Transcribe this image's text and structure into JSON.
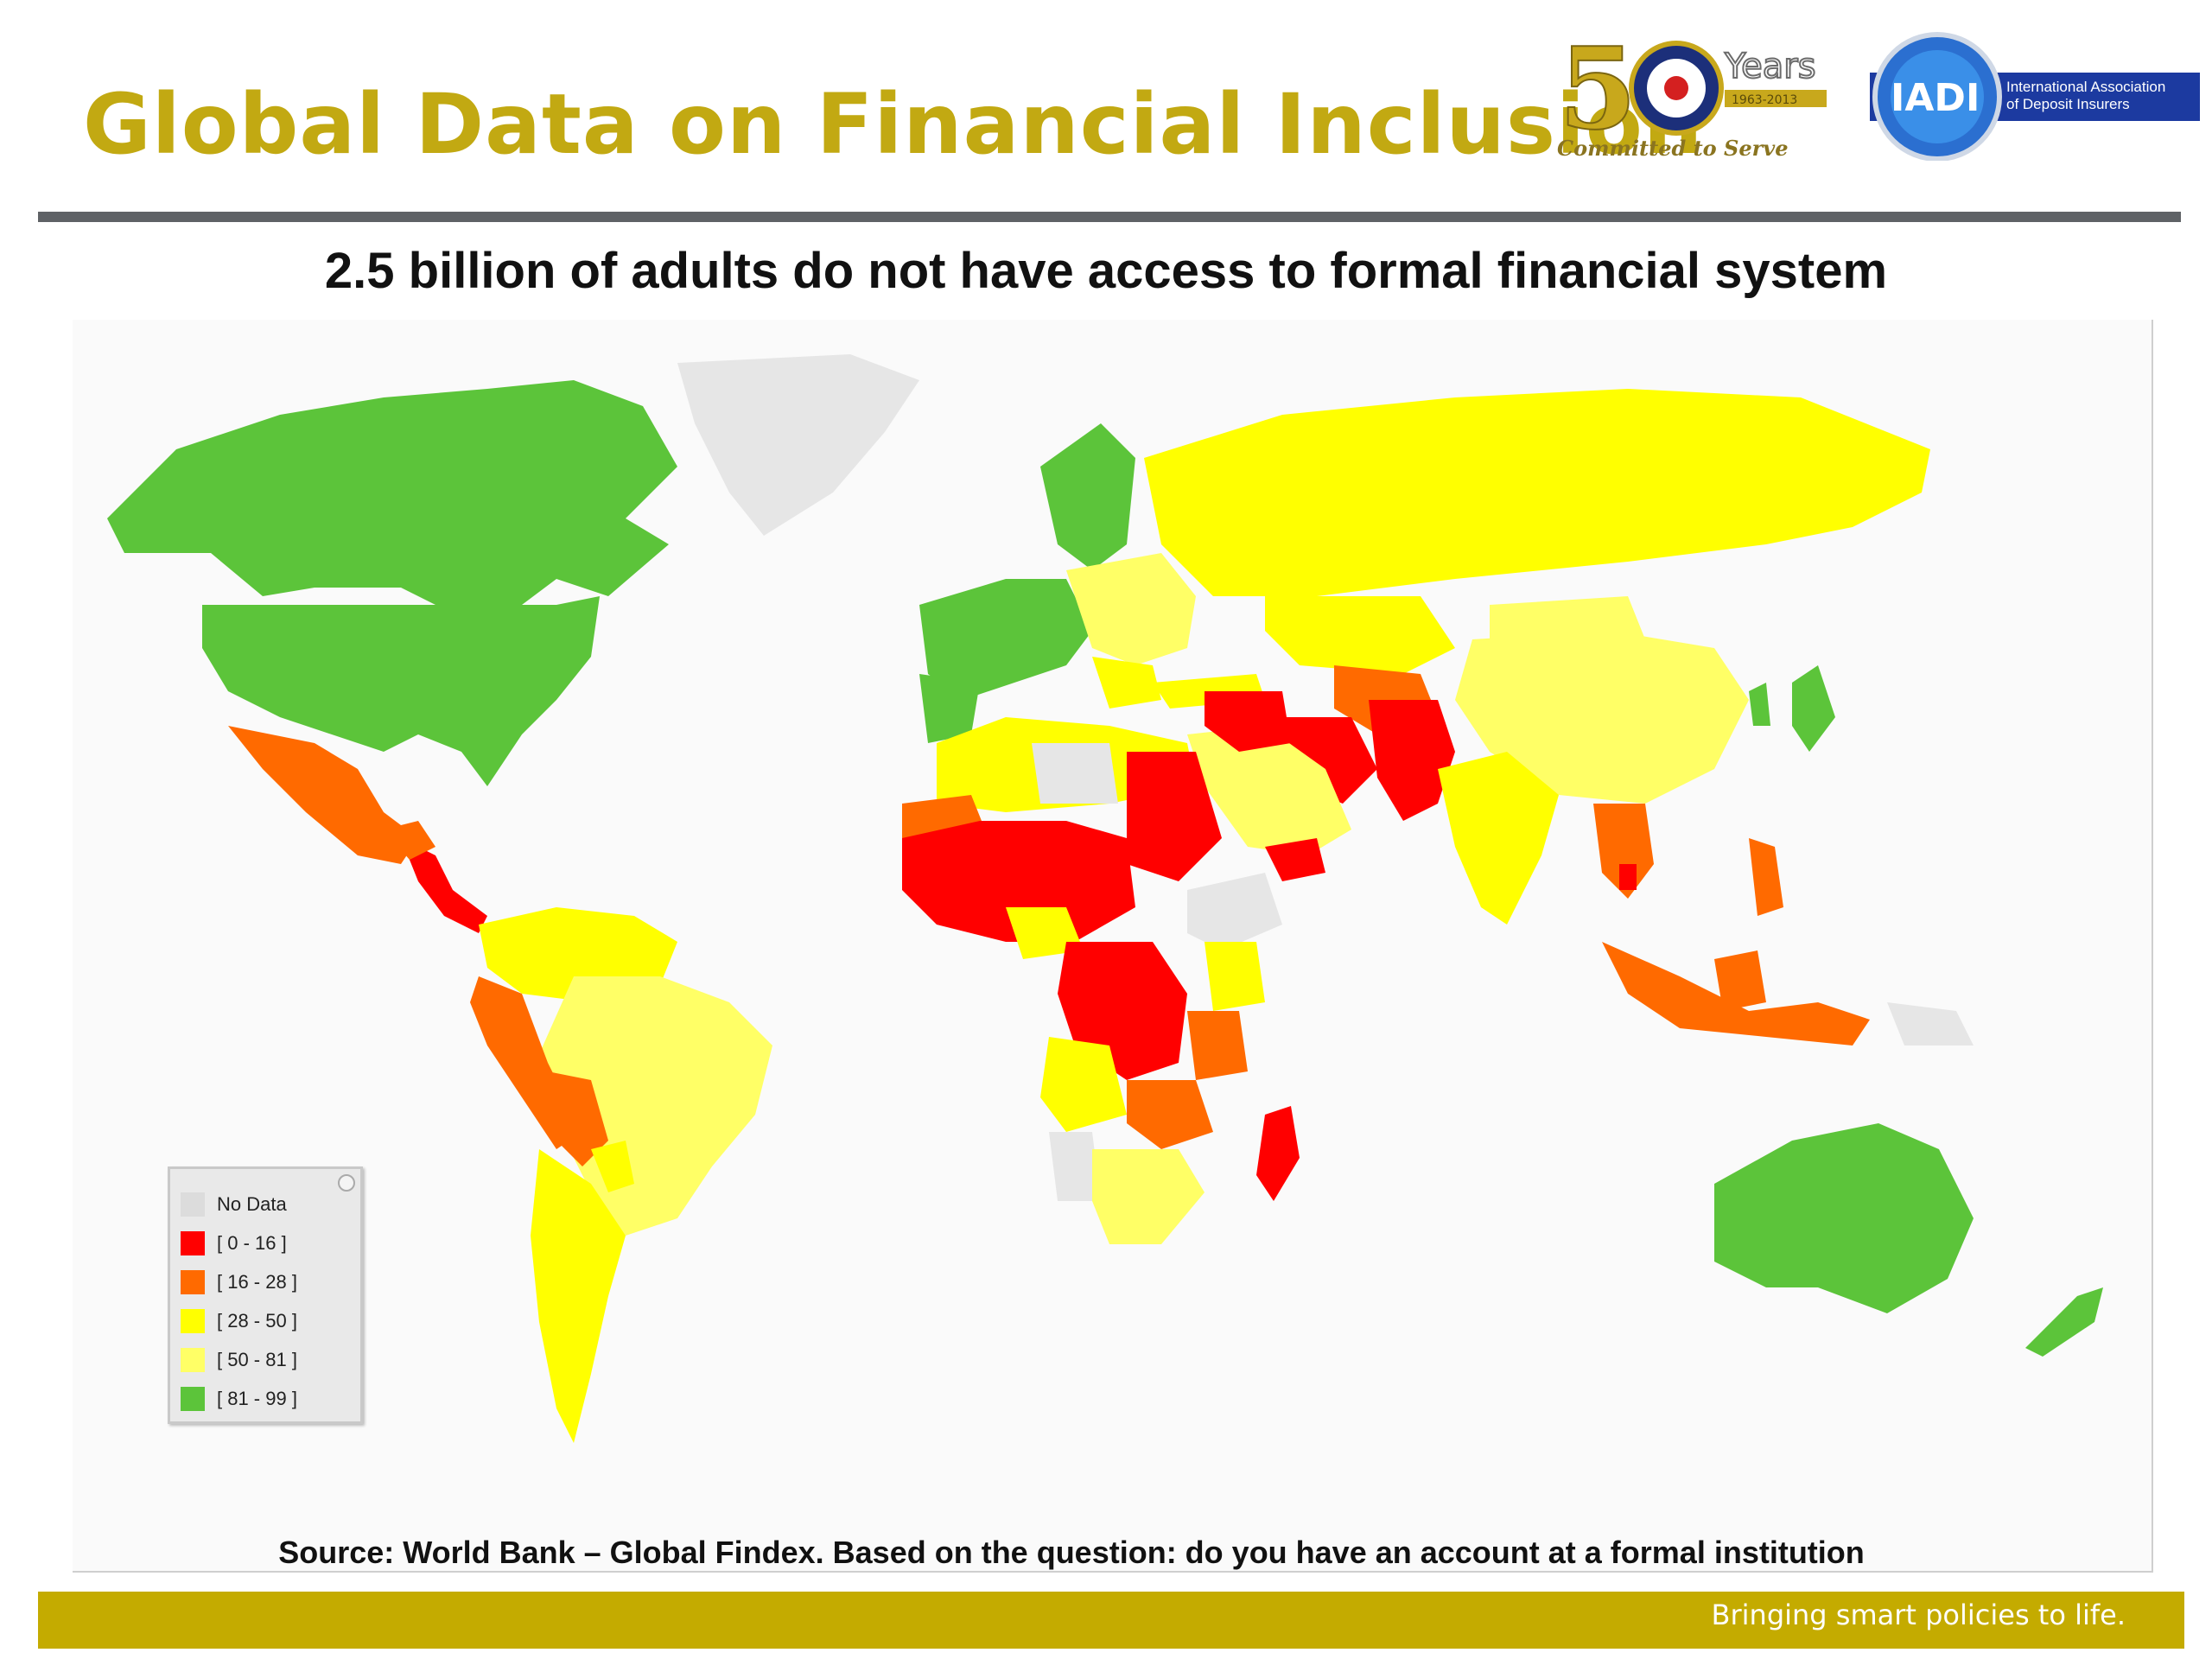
{
  "slide": {
    "title": "Global Data on Financial Inclusion",
    "subtitle": "2.5 billion of adults do not have access to formal financial system",
    "source": "Source: World Bank – Global Findex. Based on the question: do you have an account at a formal institution",
    "tagline": "Bringing smart policies to life."
  },
  "logos": {
    "anniversary": {
      "number": "5",
      "years": "Years",
      "range": "1963-2013",
      "motto": "Committed to Serve"
    },
    "iadi": {
      "abbr": "IADI",
      "name_line1": "International Association",
      "name_line2": "of Deposit Insurers"
    }
  },
  "legend": {
    "items": [
      {
        "label": "No Data",
        "color": "#dcdcdc"
      },
      {
        "label": "[ 0 - 16 ]",
        "color": "#ff0000"
      },
      {
        "label": "[ 16 - 28 ]",
        "color": "#ff6a00"
      },
      {
        "label": "[ 28 - 50 ]",
        "color": "#ffff00"
      },
      {
        "label": "[ 50 - 81 ]",
        "color": "#ffff66"
      },
      {
        "label": "[ 81 - 99 ]",
        "color": "#5cc43a"
      }
    ]
  },
  "colors": {
    "brand_gold": "#c2a912",
    "footer_bar": "#c4ab00",
    "rule": "#5f6266"
  }
}
